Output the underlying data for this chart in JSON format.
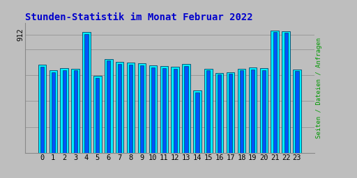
{
  "title": "Stunden-Statistik im Monat Februar 2022",
  "ylabel": "Seiten / Dateien / Anfragen",
  "xlabel_values": [
    0,
    1,
    2,
    3,
    4,
    5,
    6,
    7,
    8,
    9,
    10,
    11,
    12,
    13,
    14,
    15,
    16,
    17,
    18,
    19,
    20,
    21,
    22,
    23
  ],
  "bar_values": [
    680,
    635,
    655,
    650,
    930,
    595,
    725,
    700,
    695,
    690,
    675,
    670,
    665,
    685,
    480,
    650,
    618,
    622,
    648,
    658,
    652,
    945,
    938,
    645
  ],
  "bar2_values": [
    665,
    622,
    640,
    637,
    915,
    580,
    710,
    685,
    680,
    675,
    660,
    655,
    650,
    668,
    468,
    638,
    605,
    610,
    635,
    645,
    638,
    932,
    925,
    632
  ],
  "bar_color": "#00EEFF",
  "bar2_color": "#0055FF",
  "bar_edge_color": "#004466",
  "background_color": "#BEBEBE",
  "plot_bg_color": "#BEBEBE",
  "title_color": "#0000CC",
  "ylabel_color": "#009900",
  "grid_color": "#999999",
  "ylim_min": 0,
  "ylim_max": 1000,
  "ytick_label": "912",
  "ytick_val": 912,
  "title_fontsize": 10,
  "axis_fontsize": 7.5,
  "bar_width": 0.72
}
